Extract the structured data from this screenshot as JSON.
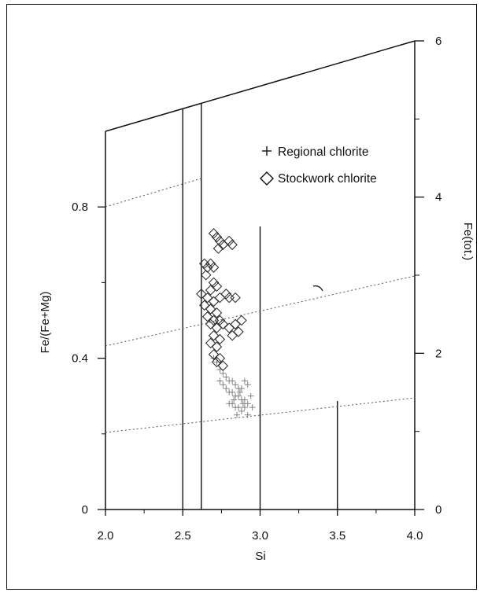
{
  "chart_data": {
    "type": "scatter",
    "x_axis": {
      "label": "Si",
      "range": [
        2.0,
        4.0
      ],
      "ticks": [
        "2.0",
        "2.5",
        "3.0",
        "3.5",
        "4.0"
      ]
    },
    "y_axis_left": {
      "label": "Fe/(Fe+Mg)",
      "range": [
        0,
        1.0
      ],
      "ticks": [
        "0",
        "0.4",
        "0.8"
      ]
    },
    "y_axis_right": {
      "label": "Fe(tot.)",
      "range": [
        0,
        6
      ],
      "ticks": [
        "0",
        "2",
        "4",
        "6"
      ]
    },
    "grid": false,
    "legend_position": "top-right",
    "series": [
      {
        "name": "Regional chlorite",
        "marker": "plus",
        "points": [
          [
            2.7,
            0.4
          ],
          [
            2.72,
            0.39
          ],
          [
            2.74,
            0.37
          ],
          [
            2.76,
            0.36
          ],
          [
            2.78,
            0.35
          ],
          [
            2.8,
            0.34
          ],
          [
            2.82,
            0.34
          ],
          [
            2.84,
            0.33
          ],
          [
            2.86,
            0.32
          ],
          [
            2.88,
            0.32
          ],
          [
            2.9,
            0.34
          ],
          [
            2.92,
            0.33
          ],
          [
            2.78,
            0.32
          ],
          [
            2.8,
            0.31
          ],
          [
            2.82,
            0.31
          ],
          [
            2.84,
            0.3
          ],
          [
            2.86,
            0.3
          ],
          [
            2.88,
            0.29
          ],
          [
            2.9,
            0.29
          ],
          [
            2.92,
            0.28
          ],
          [
            2.82,
            0.28
          ],
          [
            2.84,
            0.27
          ],
          [
            2.86,
            0.27
          ],
          [
            2.88,
            0.26
          ],
          [
            2.9,
            0.27
          ],
          [
            2.94,
            0.3
          ],
          [
            2.8,
            0.28
          ],
          [
            2.85,
            0.25
          ],
          [
            2.92,
            0.25
          ],
          [
            2.76,
            0.33
          ],
          [
            2.83,
            0.29
          ],
          [
            2.87,
            0.31
          ],
          [
            2.95,
            0.27
          ],
          [
            2.74,
            0.34
          ],
          [
            2.89,
            0.28
          ]
        ]
      },
      {
        "name": "Stockwork chlorite",
        "marker": "diamond",
        "points": [
          [
            2.72,
            0.72
          ],
          [
            2.74,
            0.71
          ],
          [
            2.76,
            0.7
          ],
          [
            2.7,
            0.73
          ],
          [
            2.8,
            0.71
          ],
          [
            2.82,
            0.7
          ],
          [
            2.73,
            0.69
          ],
          [
            2.64,
            0.65
          ],
          [
            2.66,
            0.64
          ],
          [
            2.68,
            0.65
          ],
          [
            2.7,
            0.64
          ],
          [
            2.65,
            0.62
          ],
          [
            2.7,
            0.6
          ],
          [
            2.72,
            0.59
          ],
          [
            2.68,
            0.58
          ],
          [
            2.62,
            0.57
          ],
          [
            2.66,
            0.56
          ],
          [
            2.7,
            0.55
          ],
          [
            2.74,
            0.56
          ],
          [
            2.78,
            0.57
          ],
          [
            2.8,
            0.56
          ],
          [
            2.84,
            0.56
          ],
          [
            2.64,
            0.54
          ],
          [
            2.68,
            0.53
          ],
          [
            2.72,
            0.52
          ],
          [
            2.66,
            0.51
          ],
          [
            2.7,
            0.5
          ],
          [
            2.74,
            0.5
          ],
          [
            2.68,
            0.49
          ],
          [
            2.72,
            0.48
          ],
          [
            2.76,
            0.49
          ],
          [
            2.8,
            0.48
          ],
          [
            2.84,
            0.49
          ],
          [
            2.88,
            0.5
          ],
          [
            2.86,
            0.47
          ],
          [
            2.82,
            0.46
          ],
          [
            2.7,
            0.46
          ],
          [
            2.74,
            0.45
          ],
          [
            2.68,
            0.44
          ],
          [
            2.72,
            0.43
          ],
          [
            2.7,
            0.41
          ],
          [
            2.74,
            0.4
          ],
          [
            2.76,
            0.38
          ],
          [
            2.72,
            0.39
          ]
        ]
      }
    ]
  }
}
